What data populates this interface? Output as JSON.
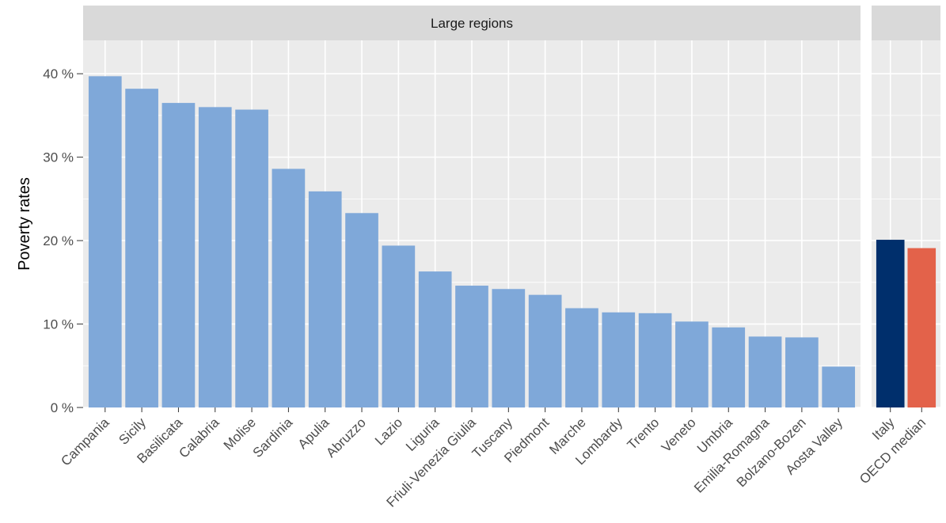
{
  "chart_data": {
    "type": "bar",
    "ylabel": "Poverty rates",
    "xlabel": "",
    "ylim": [
      0,
      44
    ],
    "y_ticks": [
      0,
      10,
      20,
      30,
      40
    ],
    "y_tick_labels": [
      "0 %",
      "10 %",
      "20 %",
      "30 %",
      "40 %"
    ],
    "grid": true,
    "panels": [
      {
        "strip_label": "Large regions",
        "categories": [
          "Campania",
          "Sicily",
          "Basilicata",
          "Calabria",
          "Molise",
          "Sardinia",
          "Apulia",
          "Abruzzo",
          "Lazio",
          "Liguria",
          "Friuli-Venezia Giulia",
          "Tuscany",
          "Piedmont",
          "Marche",
          "Lombardy",
          "Trento",
          "Veneto",
          "Umbria",
          "Emilia-Romagna",
          "Bolzano-Bozen",
          "Aosta Valley"
        ],
        "values": [
          39.7,
          38.2,
          36.5,
          36.0,
          35.7,
          28.6,
          25.9,
          23.3,
          19.4,
          16.3,
          14.6,
          14.2,
          13.5,
          11.9,
          11.4,
          11.3,
          10.3,
          9.6,
          8.5,
          8.4,
          4.9
        ],
        "colors": [
          "#7fa8d9"
        ]
      },
      {
        "strip_label": "",
        "categories": [
          "Italy",
          "OECD median"
        ],
        "values": [
          20.1,
          19.1
        ],
        "colors": [
          "#002f6c",
          "#e3624a"
        ]
      }
    ]
  },
  "colors": {
    "panel_background": "#ebebeb",
    "strip_background": "#d9d9d9",
    "gridline": "#ffffff",
    "region_bar": "#7fa8d9",
    "italy_bar": "#002f6c",
    "oecd_bar": "#e3624a"
  }
}
